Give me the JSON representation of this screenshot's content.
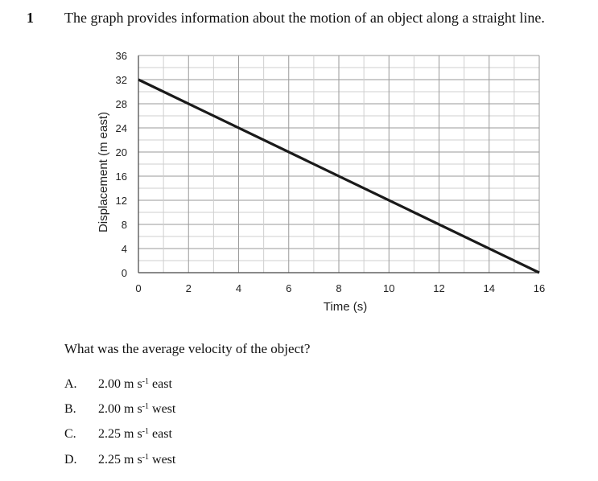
{
  "question": {
    "number": "1",
    "stem": "The graph provides information about the motion of an object along a straight line.",
    "prompt": "What was the average velocity of the object?",
    "options": [
      {
        "letter": "A.",
        "value": "2.00",
        "unit": "m s",
        "exponent": "-1",
        "direction": "east"
      },
      {
        "letter": "B.",
        "value": "2.00",
        "unit": "m s",
        "exponent": "-1",
        "direction": "west"
      },
      {
        "letter": "C.",
        "value": "2.25",
        "unit": "m s",
        "exponent": "-1",
        "direction": "east"
      },
      {
        "letter": "D.",
        "value": "2.25",
        "unit": "m s",
        "exponent": "-1",
        "direction": "west"
      }
    ]
  },
  "chart_data": {
    "type": "line",
    "title": "",
    "xlabel": "Time (s)",
    "ylabel": "Displacement (m east)",
    "xlim": [
      0,
      16
    ],
    "ylim": [
      0,
      36
    ],
    "xticks": [
      0,
      2,
      4,
      6,
      8,
      10,
      12,
      14,
      16
    ],
    "yticks": [
      0,
      4,
      8,
      12,
      16,
      20,
      24,
      28,
      32,
      36
    ],
    "grid": true,
    "series": [
      {
        "x": [
          0,
          16
        ],
        "y": [
          32,
          0
        ]
      }
    ]
  }
}
